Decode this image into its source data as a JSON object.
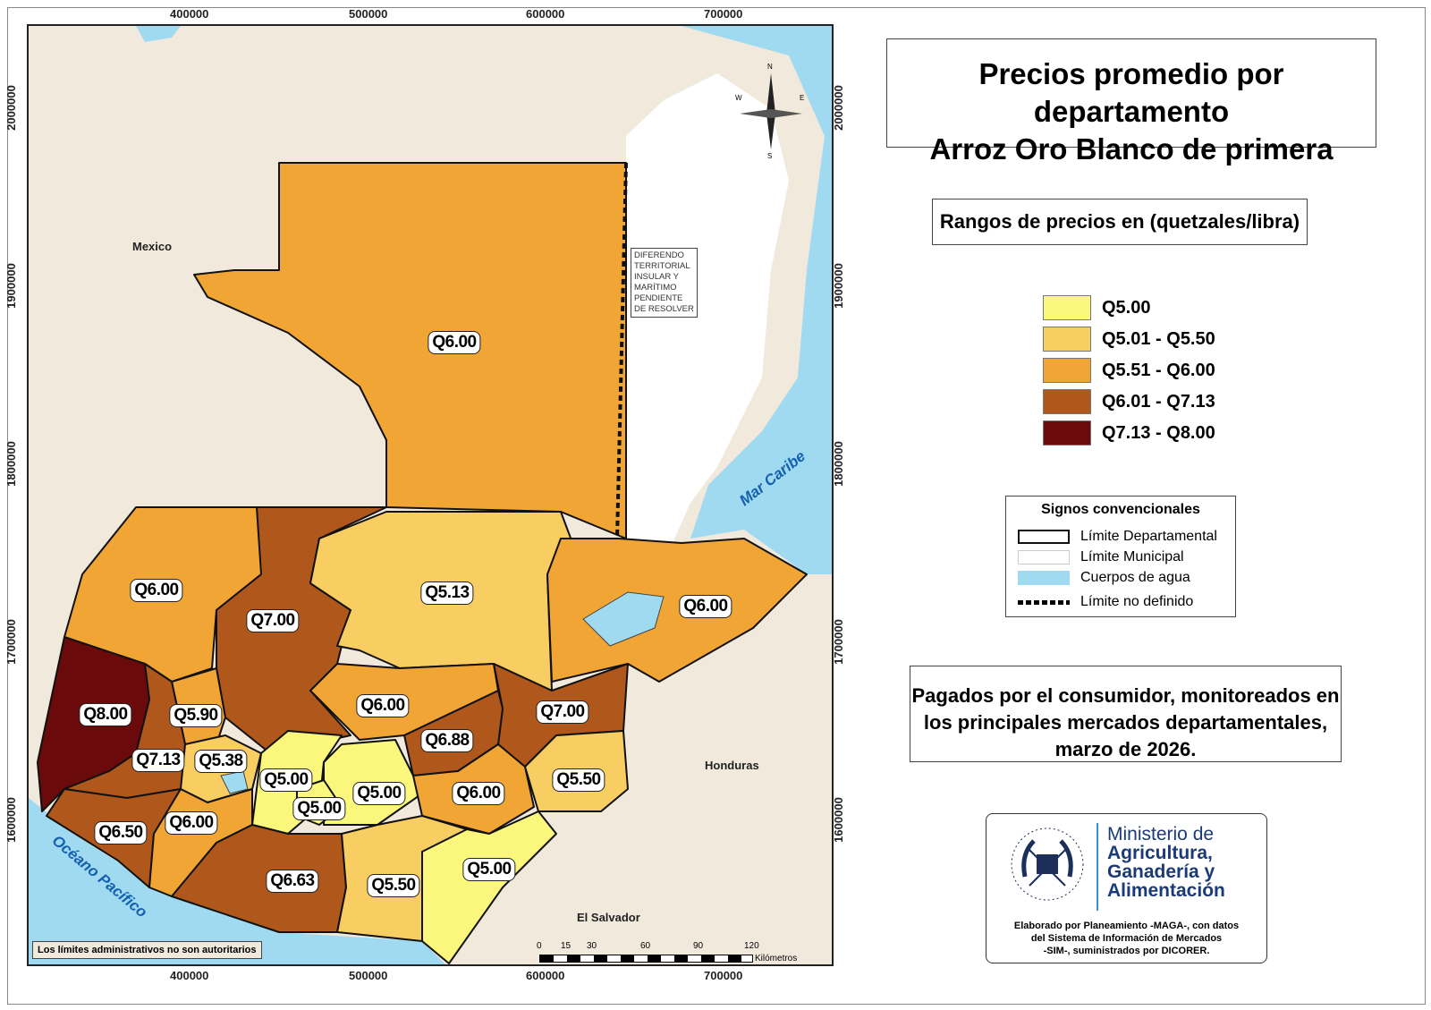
{
  "title": {
    "line1": "Precios promedio por departamento",
    "line2": "Arroz Oro Blanco de primera"
  },
  "legend": {
    "heading": "Rangos de precios en (quetzales/libra)",
    "items": [
      {
        "label": "Q5.00",
        "color": "#fbf77c"
      },
      {
        "label": "Q5.01 - Q5.50",
        "color": "#f8cd62"
      },
      {
        "label": "Q5.51 - Q6.00",
        "color": "#f0a535"
      },
      {
        "label": "Q6.01 - Q7.13",
        "color": "#b0581c"
      },
      {
        "label": "Q7.13 - Q8.00",
        "color": "#6b0a0a"
      }
    ]
  },
  "signos": {
    "heading": "Signos convencionales",
    "items": [
      "Límite Departamental",
      "Límite Municipal",
      "Cuerpos de agua",
      "Límite no definido"
    ]
  },
  "note": {
    "line1": "Pagados por el consumidor, monitoreados en",
    "line2": "los principales mercados departamentales,",
    "line3": "marzo de 2026."
  },
  "logo": {
    "seal_text": "GOBIERNO DE LA REPÚBLICA GUATEMALA",
    "ministry_line1": "Ministerio de",
    "ministry_line2": "Agricultura,",
    "ministry_line3": "Ganadería y",
    "ministry_line4": "Alimentación",
    "credit1": "Elaborado por Planeamiento -MAGA-, con datos",
    "credit2": "del Sistema de Información de Mercados",
    "credit3": "-SIM-, suministrados por DICORER."
  },
  "map": {
    "x_ticks": [
      "400000",
      "500000",
      "600000",
      "700000"
    ],
    "y_ticks": [
      "2000000",
      "1900000",
      "1800000",
      "1700000",
      "1600000"
    ],
    "places": {
      "mexico": "Mexico",
      "honduras": "Honduras",
      "el_salvador": "El Salvador"
    },
    "seas": {
      "caribe": "Mar Caribe",
      "pacifico": "Océano Pacífico"
    },
    "dispute": [
      "DIFERENDO",
      "TERRITORIAL",
      "INSULAR Y",
      "MARÍTIMO",
      "PENDIENTE",
      "DE RESOLVER"
    ],
    "disclaimer": "Los límites administrativos no son autoritarios",
    "north": {
      "n": "N",
      "s": "S",
      "e": "E",
      "w": "W"
    },
    "scale": {
      "labels": [
        "0",
        "15",
        "30",
        "60",
        "90",
        "120"
      ],
      "unit": "Kilómetros"
    },
    "colors": {
      "land": "#f1e9dc",
      "water": "#9fdaf0",
      "belize": "#ffffff"
    },
    "departments": [
      {
        "name": "peten",
        "price": "Q6.00",
        "cls": 2
      },
      {
        "name": "huehuetenango",
        "price": "Q6.00",
        "cls": 2
      },
      {
        "name": "san-marcos",
        "price": "Q8.00",
        "cls": 4
      },
      {
        "name": "quiche",
        "price": "Q7.00",
        "cls": 3
      },
      {
        "name": "alta-verapaz",
        "price": "Q5.13",
        "cls": 1
      },
      {
        "name": "izabal",
        "price": "Q6.00",
        "cls": 2
      },
      {
        "name": "baja-verapaz",
        "price": "Q6.00",
        "cls": 2
      },
      {
        "name": "zacapa",
        "price": "Q7.00",
        "cls": 3
      },
      {
        "name": "el-progreso",
        "price": "Q6.88",
        "cls": 3
      },
      {
        "name": "totonicapan",
        "price": "Q5.90",
        "cls": 2
      },
      {
        "name": "quetzaltenango",
        "price": "Q7.13",
        "cls": 3
      },
      {
        "name": "solola",
        "price": "Q5.38",
        "cls": 1
      },
      {
        "name": "chimaltenango",
        "price": "Q5.00",
        "cls": 0
      },
      {
        "name": "guatemala",
        "price": "Q5.00",
        "cls": 0
      },
      {
        "name": "sacatepequez",
        "price": "Q5.00",
        "cls": 0
      },
      {
        "name": "jalapa",
        "price": "Q6.00",
        "cls": 2
      },
      {
        "name": "chiquimula",
        "price": "Q5.50",
        "cls": 1
      },
      {
        "name": "retalhuleu",
        "price": "Q6.50",
        "cls": 3
      },
      {
        "name": "suchitepequez",
        "price": "Q6.00",
        "cls": 2
      },
      {
        "name": "escuintla",
        "price": "Q6.63",
        "cls": 3
      },
      {
        "name": "santa-rosa",
        "price": "Q5.50",
        "cls": 1
      },
      {
        "name": "jutiapa",
        "price": "Q5.00",
        "cls": 0
      }
    ]
  }
}
